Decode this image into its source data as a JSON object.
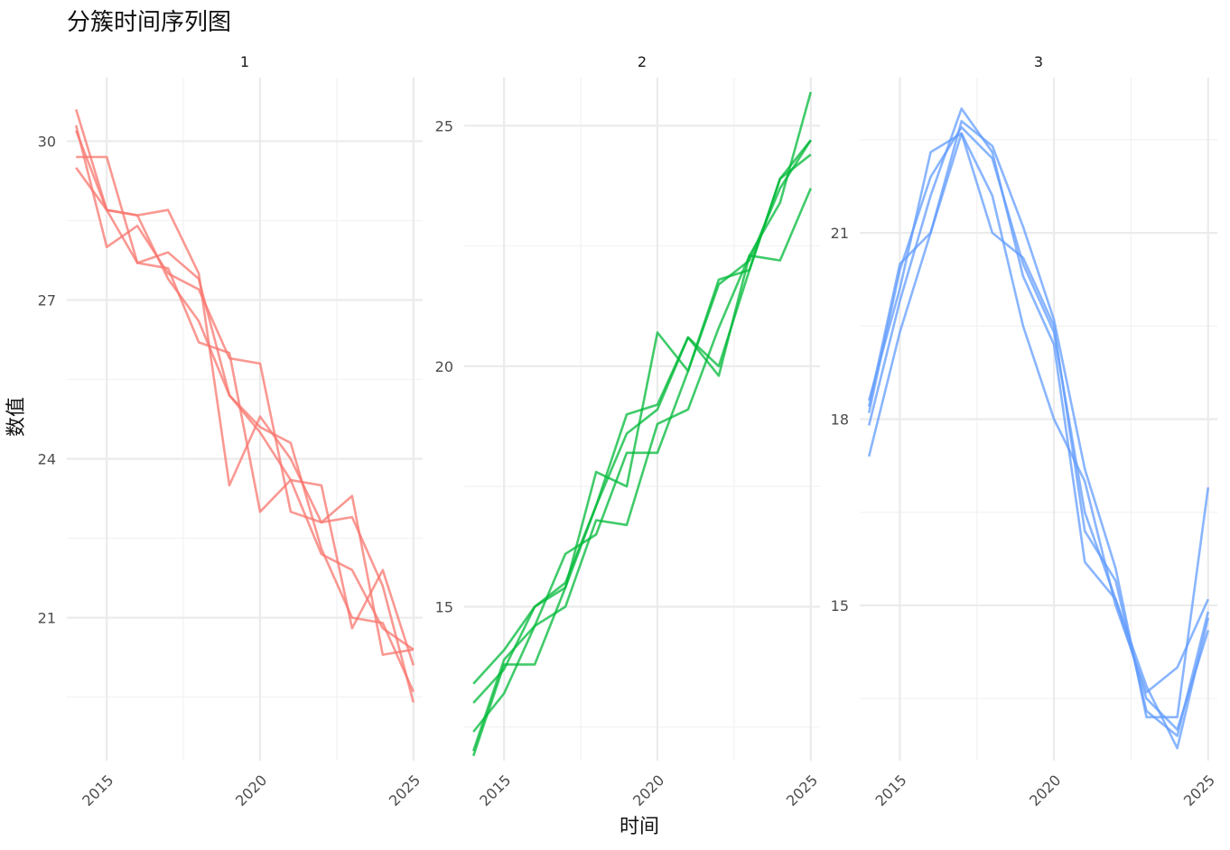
{
  "chart_data": {
    "type": "line",
    "title": "分簇时间序列图",
    "xlabel": "时间",
    "ylabel": "数值",
    "grid": true,
    "legend": "none",
    "x": [
      2014,
      2015,
      2016,
      2017,
      2018,
      2019,
      2020,
      2021,
      2022,
      2023,
      2024,
      2025
    ],
    "panels": [
      {
        "label": "1",
        "color": "#F8766D",
        "xlim": [
          2013.7,
          2025.3
        ],
        "ylim": [
          18.3,
          31.2
        ],
        "xticks": [
          2015,
          2020,
          2025
        ],
        "yticks": [
          21,
          24,
          27,
          30
        ],
        "series": [
          {
            "values": [
              30.6,
              28.7,
              28.6,
              28.7,
              27.5,
              23.5,
              24.8,
              24.0,
              22.8,
              23.3,
              20.3,
              20.4
            ]
          },
          {
            "values": [
              30.3,
              28.0,
              28.4,
              27.5,
              27.2,
              25.9,
              25.8,
              23.0,
              22.8,
              22.9,
              21.6,
              19.4
            ]
          },
          {
            "values": [
              29.7,
              29.7,
              27.7,
              27.9,
              27.4,
              25.2,
              24.5,
              23.6,
              23.5,
              20.8,
              21.9,
              20.1
            ]
          },
          {
            "values": [
              29.5,
              28.7,
              27.7,
              27.6,
              26.2,
              26.0,
              23.0,
              23.6,
              22.2,
              21.9,
              20.8,
              20.4
            ]
          },
          {
            "values": [
              30.2,
              28.7,
              28.6,
              27.4,
              26.6,
              25.2,
              24.6,
              24.3,
              22.3,
              21.0,
              20.9,
              19.6
            ]
          }
        ]
      },
      {
        "label": "2",
        "color": "#00BA38",
        "xlim": [
          2013.7,
          2025.3
        ],
        "ylim": [
          11.8,
          26.0
        ],
        "xticks": [
          2015,
          2020,
          2025
        ],
        "yticks": [
          15,
          20,
          25
        ],
        "series": [
          {
            "values": [
              13.0,
              13.7,
              15.0,
              15.4,
              17.8,
              17.5,
              20.7,
              19.9,
              21.8,
              22.0,
              23.9,
              24.7
            ]
          },
          {
            "values": [
              11.9,
              13.8,
              13.8,
              15.4,
              17.1,
              19.0,
              19.2,
              20.6,
              19.8,
              22.3,
              22.2,
              23.7
            ]
          },
          {
            "values": [
              12.4,
              13.2,
              14.6,
              15.0,
              16.8,
              16.7,
              18.8,
              19.1,
              20.8,
              22.3,
              23.4,
              25.7
            ]
          },
          {
            "values": [
              12.0,
              13.9,
              14.6,
              16.1,
              16.5,
              18.2,
              18.2,
              19.9,
              21.7,
              22.2,
              23.7,
              24.7
            ]
          },
          {
            "values": [
              13.4,
              14.1,
              15.0,
              15.5,
              17.1,
              18.6,
              19.1,
              20.6,
              20.0,
              22.0,
              23.9,
              24.4
            ]
          }
        ]
      },
      {
        "label": "3",
        "color": "#619CFF",
        "xlim": [
          2013.7,
          2025.3
        ],
        "ylim": [
          12.5,
          23.5
        ],
        "xticks": [
          2015,
          2020,
          2025
        ],
        "yticks": [
          15,
          18,
          21
        ],
        "series": [
          {
            "values": [
              17.4,
              19.4,
              21.0,
              22.8,
              22.4,
              21.1,
              19.6,
              17.2,
              15.6,
              13.2,
              13.2,
              16.9
            ]
          },
          {
            "values": [
              18.1,
              20.4,
              21.9,
              22.7,
              22.2,
              20.5,
              19.4,
              16.5,
              15.1,
              13.7,
              12.7,
              14.8
            ]
          },
          {
            "values": [
              18.3,
              20.1,
              22.3,
              22.6,
              21.0,
              20.6,
              19.5,
              16.2,
              15.4,
              13.3,
              12.9,
              14.9
            ]
          },
          {
            "values": [
              17.9,
              19.9,
              21.6,
              23.0,
              22.3,
              20.3,
              19.2,
              15.7,
              15.1,
              13.5,
              13.0,
              14.6
            ]
          },
          {
            "values": [
              18.2,
              20.5,
              21.0,
              22.6,
              21.6,
              19.5,
              18.0,
              17.0,
              15.0,
              13.6,
              14.0,
              15.1
            ]
          }
        ]
      }
    ]
  }
}
